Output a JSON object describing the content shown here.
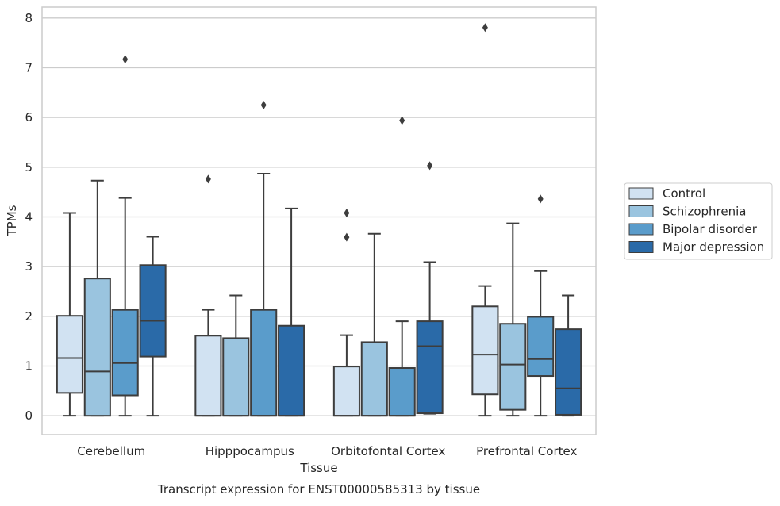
{
  "chart_data": {
    "type": "box",
    "caption": "Transcript expression for ENST00000585313 by tissue",
    "xlabel": "Tissue",
    "ylabel": "TPMs",
    "ylim": [
      -0.38,
      8.22
    ],
    "yticks": [
      0,
      1,
      2,
      3,
      4,
      5,
      6,
      7,
      8
    ],
    "grid": true,
    "legend_position": "right",
    "categories": [
      "Cerebellum",
      "Hipppocampus",
      "Orbitofontal Cortex",
      "Prefrontal Cortex"
    ],
    "series": [
      {
        "name": "Control",
        "color": "#d1e2f2",
        "boxes": [
          {
            "whislo": 0,
            "q1": 0.46,
            "med": 1.16,
            "q3": 2.01,
            "whishi": 4.08,
            "fliers": []
          },
          {
            "whislo": 0,
            "q1": 0,
            "med": 0,
            "q3": 1.61,
            "whishi": 2.13,
            "fliers": [
              4.76
            ]
          },
          {
            "whislo": 0,
            "q1": 0,
            "med": 0,
            "q3": 0.99,
            "whishi": 1.62,
            "fliers": [
              3.59,
              4.08
            ]
          },
          {
            "whislo": 0,
            "q1": 0.43,
            "med": 1.23,
            "q3": 2.2,
            "whishi": 2.61,
            "fliers": [
              7.81
            ]
          }
        ]
      },
      {
        "name": "Schizophrenia",
        "color": "#9ac4df",
        "boxes": [
          {
            "whislo": 0,
            "q1": 0,
            "med": 0.89,
            "q3": 2.76,
            "whishi": 4.73,
            "fliers": []
          },
          {
            "whislo": 0,
            "q1": 0,
            "med": 0,
            "q3": 1.56,
            "whishi": 2.42,
            "fliers": []
          },
          {
            "whislo": 0,
            "q1": 0,
            "med": 0,
            "q3": 1.48,
            "whishi": 3.66,
            "fliers": []
          },
          {
            "whislo": 0,
            "q1": 0.12,
            "med": 1.03,
            "q3": 1.85,
            "whishi": 3.87,
            "fliers": []
          }
        ]
      },
      {
        "name": "Bipolar disorder",
        "color": "#5a9ccb",
        "boxes": [
          {
            "whislo": 0,
            "q1": 0.41,
            "med": 1.06,
            "q3": 2.13,
            "whishi": 4.38,
            "fliers": [
              7.17
            ]
          },
          {
            "whislo": 0,
            "q1": 0,
            "med": 0,
            "q3": 2.13,
            "whishi": 4.87,
            "fliers": [
              6.25
            ]
          },
          {
            "whislo": 0,
            "q1": 0,
            "med": 0,
            "q3": 0.96,
            "whishi": 1.9,
            "fliers": [
              5.94
            ]
          },
          {
            "whislo": 0,
            "q1": 0.8,
            "med": 1.14,
            "q3": 1.99,
            "whishi": 2.91,
            "fliers": [
              4.36
            ]
          }
        ]
      },
      {
        "name": "Major depression",
        "color": "#2a6aa8",
        "boxes": [
          {
            "whislo": 0,
            "q1": 1.19,
            "med": 1.91,
            "q3": 3.03,
            "whishi": 3.6,
            "fliers": []
          },
          {
            "whislo": 0,
            "q1": 0,
            "med": 0,
            "q3": 1.81,
            "whishi": 4.17,
            "fliers": []
          },
          {
            "whislo": 0.04,
            "q1": 0.05,
            "med": 1.4,
            "q3": 1.9,
            "whishi": 3.09,
            "fliers": [
              5.03
            ]
          },
          {
            "whislo": 0,
            "q1": 0.02,
            "med": 0.55,
            "q3": 1.74,
            "whishi": 2.42,
            "fliers": []
          }
        ]
      }
    ]
  }
}
